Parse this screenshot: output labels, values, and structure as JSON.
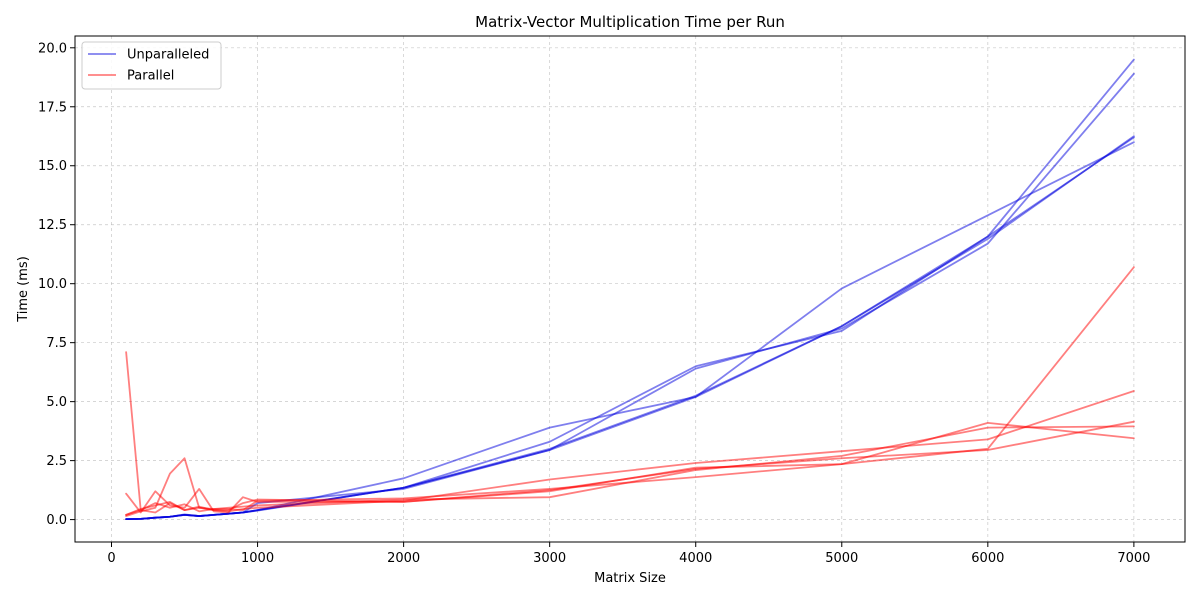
{
  "chart_data": {
    "type": "line",
    "title": "Matrix-Vector Multiplication Time per Run",
    "xlabel": "Matrix Size",
    "ylabel": "Time (ms)",
    "xlim": [
      -250,
      7350
    ],
    "ylim": [
      -0.95,
      20.5
    ],
    "xticks": [
      0,
      1000,
      2000,
      3000,
      4000,
      5000,
      6000,
      7000
    ],
    "yticks": [
      0.0,
      2.5,
      5.0,
      7.5,
      10.0,
      12.5,
      15.0,
      17.5,
      20.0
    ],
    "ytick_labels": [
      "0.0",
      "2.5",
      "5.0",
      "7.5",
      "10.0",
      "12.5",
      "15.0",
      "17.5",
      "20.0"
    ],
    "grid": true,
    "legend_position": "upper-left",
    "legend": [
      {
        "label": "Unparalleled",
        "color": "#0000dd"
      },
      {
        "label": "Parallel",
        "color": "#ff0000"
      }
    ],
    "series": [
      {
        "group": "Unparalleled",
        "color": "#0000dd",
        "x": [
          100,
          200,
          300,
          400,
          500,
          600,
          700,
          800,
          900,
          1000,
          2000,
          3000,
          4000,
          5000,
          6000,
          7000
        ],
        "y": [
          0.02,
          0.03,
          0.08,
          0.12,
          0.2,
          0.15,
          0.2,
          0.25,
          0.3,
          0.38,
          1.35,
          2.95,
          5.2,
          8.2,
          12.0,
          16.2
        ]
      },
      {
        "group": "Unparalleled",
        "color": "#0000dd",
        "x": [
          100,
          200,
          300,
          400,
          500,
          600,
          700,
          800,
          900,
          1000,
          2000,
          3000,
          4000,
          5000,
          6000,
          7000
        ],
        "y": [
          0.02,
          0.03,
          0.08,
          0.12,
          0.22,
          0.15,
          0.2,
          0.25,
          0.3,
          0.4,
          1.35,
          3.0,
          5.25,
          8.2,
          11.9,
          16.25
        ]
      },
      {
        "group": "Unparalleled",
        "color": "#0000dd",
        "x": [
          100,
          200,
          300,
          400,
          500,
          600,
          700,
          800,
          900,
          1000,
          2000,
          3000,
          4000,
          5000,
          6000,
          7000
        ],
        "y": [
          0.02,
          0.03,
          0.08,
          0.12,
          0.2,
          0.15,
          0.2,
          0.25,
          0.3,
          0.4,
          1.35,
          3.3,
          6.5,
          8.0,
          12.0,
          19.5
        ]
      },
      {
        "group": "Unparalleled",
        "color": "#0000dd",
        "x": [
          100,
          200,
          300,
          400,
          500,
          600,
          700,
          800,
          900,
          1000,
          2000,
          3000,
          4000,
          5000,
          6000,
          7000
        ],
        "y": [
          0.02,
          0.03,
          0.08,
          0.12,
          0.2,
          0.15,
          0.2,
          0.25,
          0.3,
          0.7,
          1.3,
          2.95,
          6.4,
          8.1,
          11.7,
          18.9
        ]
      },
      {
        "group": "Unparalleled",
        "color": "#0000dd",
        "x": [
          100,
          200,
          300,
          400,
          500,
          600,
          700,
          800,
          900,
          1000,
          2000,
          3000,
          4000,
          5000,
          6000,
          7000
        ],
        "y": [
          0.02,
          0.03,
          0.08,
          0.12,
          0.2,
          0.15,
          0.2,
          0.25,
          0.3,
          0.4,
          1.75,
          3.9,
          5.2,
          9.8,
          12.9,
          16.0
        ]
      },
      {
        "group": "Parallel",
        "color": "#ff0000",
        "x": [
          100,
          200,
          300,
          400,
          500,
          600,
          700,
          800,
          900,
          1000,
          2000,
          3000,
          4000,
          5000,
          6000,
          7000
        ],
        "y": [
          7.1,
          0.4,
          0.3,
          0.7,
          0.4,
          0.5,
          0.45,
          0.45,
          0.4,
          0.8,
          0.9,
          1.3,
          1.8,
          2.35,
          4.1,
          3.45
        ]
      },
      {
        "group": "Parallel",
        "color": "#ff0000",
        "x": [
          100,
          200,
          300,
          400,
          500,
          600,
          700,
          800,
          900,
          1000,
          2000,
          3000,
          4000,
          5000,
          6000,
          7000
        ],
        "y": [
          1.1,
          0.3,
          1.2,
          0.6,
          0.5,
          1.3,
          0.35,
          0.3,
          0.95,
          0.75,
          0.75,
          1.2,
          2.2,
          2.35,
          3.0,
          10.7
        ]
      },
      {
        "group": "Parallel",
        "color": "#ff0000",
        "x": [
          100,
          200,
          300,
          400,
          500,
          600,
          700,
          800,
          900,
          1000,
          2000,
          3000,
          4000,
          5000,
          6000,
          7000
        ],
        "y": [
          0.15,
          0.35,
          0.5,
          1.95,
          2.6,
          0.5,
          0.4,
          0.35,
          0.45,
          0.5,
          0.8,
          1.7,
          2.4,
          2.9,
          3.4,
          5.45
        ]
      },
      {
        "group": "Parallel",
        "color": "#ff0000",
        "x": [
          100,
          200,
          300,
          400,
          500,
          600,
          700,
          800,
          900,
          1000,
          2000,
          3000,
          4000,
          5000,
          6000,
          7000
        ],
        "y": [
          0.2,
          0.4,
          0.7,
          0.5,
          0.65,
          0.35,
          0.45,
          0.5,
          0.55,
          0.6,
          0.85,
          0.95,
          2.1,
          2.7,
          3.9,
          3.95
        ]
      },
      {
        "group": "Parallel",
        "color": "#ff0000",
        "x": [
          100,
          200,
          300,
          400,
          500,
          600,
          700,
          800,
          900,
          1000,
          2000,
          3000,
          4000,
          5000,
          6000,
          7000
        ],
        "y": [
          0.2,
          0.45,
          0.6,
          0.75,
          0.4,
          0.55,
          0.4,
          0.4,
          0.7,
          0.85,
          0.75,
          1.25,
          2.15,
          2.6,
          2.95,
          4.15
        ]
      }
    ]
  }
}
